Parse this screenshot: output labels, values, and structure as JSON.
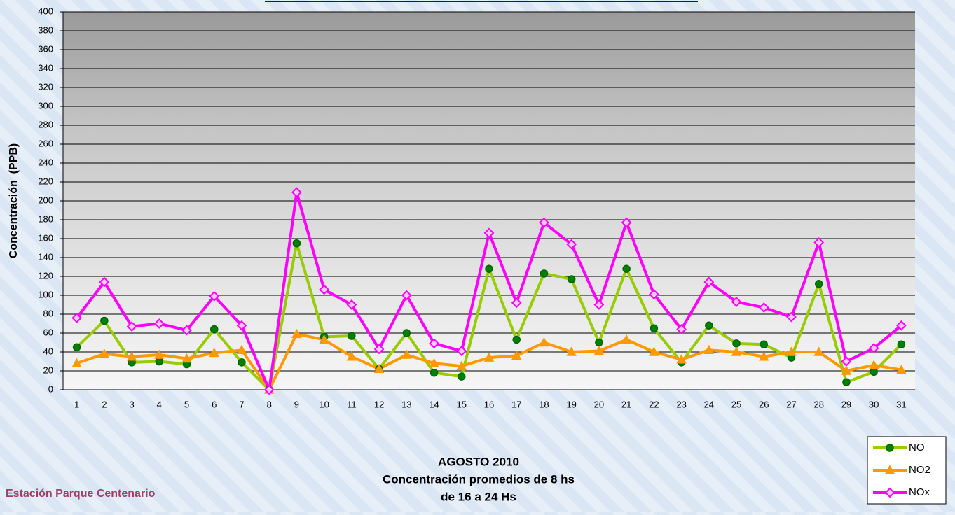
{
  "chart_data": {
    "type": "line",
    "title": "AGOSTO 2010",
    "subtitle": [
      "Concentración promedios de 8 hs",
      "de 16 a 24 Hs"
    ],
    "station": "Estación Parque Centenario",
    "y_label": "Concentración  (PPB)",
    "categories": [
      "1",
      "2",
      "3",
      "4",
      "5",
      "6",
      "7",
      "8",
      "9",
      "10",
      "11",
      "12",
      "13",
      "14",
      "15",
      "16",
      "17",
      "18",
      "19",
      "20",
      "21",
      "22",
      "23",
      "24",
      "25",
      "26",
      "27",
      "28",
      "29",
      "30",
      "31"
    ],
    "series": [
      {
        "name": "NO",
        "color": "#99cc00",
        "marker": "circle",
        "marker_color": "#008000",
        "values": [
          45,
          73,
          29,
          30,
          27,
          64,
          29,
          0,
          155,
          56,
          57,
          22,
          60,
          18,
          14,
          128,
          53,
          123,
          117,
          50,
          128,
          65,
          29,
          68,
          49,
          48,
          34,
          112,
          8,
          19,
          48
        ]
      },
      {
        "name": "NO2",
        "color": "#ff9900",
        "marker": "triangle",
        "marker_color": "#ff9900",
        "values": [
          28,
          38,
          35,
          37,
          33,
          39,
          42,
          0,
          59,
          53,
          35,
          22,
          37,
          28,
          25,
          34,
          36,
          50,
          40,
          41,
          53,
          40,
          32,
          42,
          40,
          35,
          40,
          40,
          20,
          26,
          21
        ]
      },
      {
        "name": "NOx",
        "color": "#ff00ff",
        "marker": "diamond",
        "marker_color": "#ffccff",
        "values": [
          76,
          114,
          67,
          70,
          63,
          99,
          68,
          0,
          209,
          106,
          90,
          43,
          100,
          49,
          41,
          166,
          92,
          177,
          154,
          90,
          177,
          101,
          64,
          114,
          93,
          87,
          77,
          156,
          30,
          44,
          68
        ]
      }
    ],
    "ylim": [
      0,
      400
    ],
    "yticks": [
      0,
      20,
      40,
      60,
      80,
      100,
      120,
      140,
      160,
      180,
      200,
      220,
      240,
      260,
      280,
      300,
      320,
      340,
      360,
      380,
      400
    ],
    "grid": true
  }
}
